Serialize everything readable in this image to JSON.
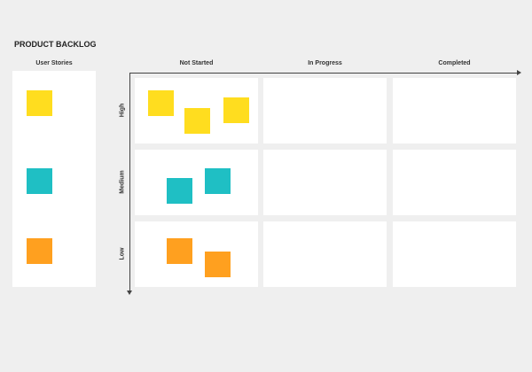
{
  "title": "PRODUCT BACKLOG",
  "stories_header": "User Stories",
  "columns": [
    "Not Started",
    "In Progress",
    "Completed"
  ],
  "rows": [
    "High",
    "Medium",
    "Low"
  ],
  "colors": {
    "high": "#FFDD1F",
    "medium": "#1FBFC4",
    "low": "#FFA01F",
    "background": "#efefef"
  }
}
